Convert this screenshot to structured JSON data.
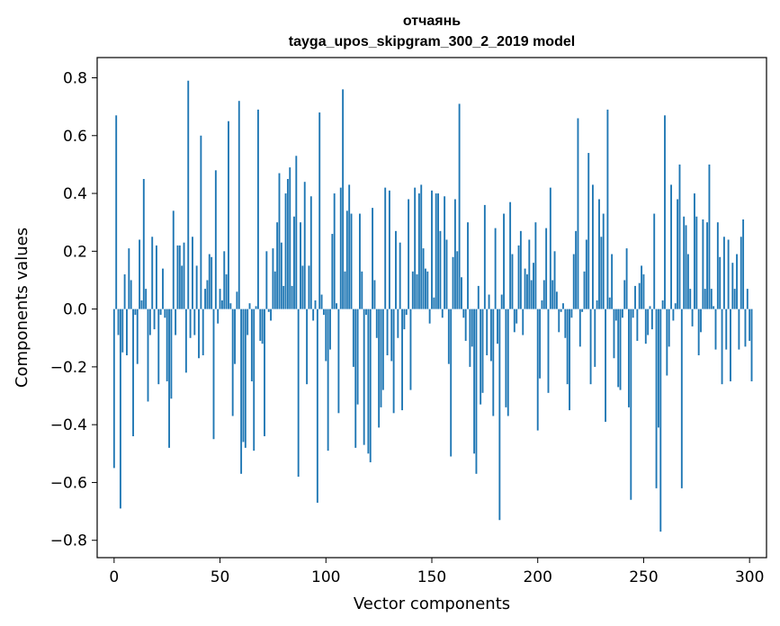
{
  "chart_data": {
    "type": "bar",
    "title_line1": "отчаянь",
    "title_line2": "tayga_upos_skipgram_300_2_2019 model",
    "xlabel": "Vector components",
    "ylabel": "Components values",
    "xlim": [
      -8,
      308
    ],
    "ylim": [
      -0.86,
      0.87
    ],
    "xticks": [
      0,
      50,
      100,
      150,
      200,
      250,
      300
    ],
    "yticks": [
      -0.8,
      -0.6,
      -0.4,
      -0.2,
      0.0,
      0.2,
      0.4,
      0.6,
      0.8
    ],
    "xtick_labels": [
      "0",
      "50",
      "100",
      "150",
      "200",
      "250",
      "300"
    ],
    "ytick_labels": [
      "−0.8",
      "−0.6",
      "−0.4",
      "−0.2",
      "0.0",
      "0.2",
      "0.4",
      "0.6",
      "0.8"
    ],
    "bar_color": "#1f77b4",
    "values": [
      -0.55,
      0.67,
      -0.09,
      -0.69,
      -0.15,
      0.12,
      -0.16,
      0.21,
      0.1,
      -0.44,
      -0.02,
      -0.19,
      0.24,
      0.03,
      0.45,
      0.07,
      -0.32,
      -0.09,
      0.25,
      -0.07,
      0.22,
      -0.26,
      -0.02,
      0.14,
      -0.03,
      -0.25,
      -0.48,
      -0.31,
      0.34,
      -0.09,
      0.22,
      0.22,
      0.15,
      0.23,
      -0.22,
      0.79,
      -0.1,
      0.25,
      -0.09,
      0.15,
      -0.17,
      0.6,
      -0.16,
      0.07,
      0.1,
      0.19,
      0.18,
      -0.45,
      0.48,
      -0.05,
      0.07,
      0.03,
      0.2,
      0.12,
      0.65,
      0.02,
      -0.37,
      -0.19,
      0.06,
      0.72,
      -0.57,
      -0.46,
      -0.48,
      -0.09,
      0.02,
      -0.25,
      -0.49,
      0.01,
      0.69,
      -0.11,
      -0.12,
      -0.44,
      0.2,
      -0.01,
      -0.04,
      0.21,
      0.13,
      0.3,
      0.47,
      0.23,
      0.08,
      0.4,
      0.45,
      0.49,
      0.08,
      0.32,
      0.53,
      -0.58,
      0.3,
      0.15,
      0.44,
      -0.26,
      0.15,
      0.39,
      -0.04,
      0.03,
      -0.67,
      0.68,
      0.05,
      -0.02,
      -0.18,
      -0.49,
      -0.14,
      0.26,
      0.4,
      0.02,
      -0.36,
      0.42,
      0.76,
      0.13,
      0.34,
      0.43,
      0.33,
      -0.2,
      -0.48,
      -0.33,
      0.33,
      0.13,
      -0.47,
      -0.02,
      -0.5,
      -0.53,
      0.35,
      0.1,
      -0.1,
      -0.41,
      -0.34,
      -0.28,
      0.42,
      -0.16,
      0.41,
      -0.18,
      -0.36,
      0.27,
      -0.1,
      0.23,
      -0.35,
      -0.07,
      -0.02,
      0.38,
      -0.28,
      0.13,
      0.42,
      0.12,
      0.4,
      0.43,
      0.21,
      0.14,
      0.13,
      -0.05,
      0.41,
      0.04,
      0.4,
      0.4,
      0.27,
      -0.03,
      0.39,
      0.24,
      -0.19,
      -0.51,
      0.18,
      0.38,
      0.2,
      0.71,
      0.11,
      -0.03,
      -0.11,
      0.3,
      -0.2,
      -0.13,
      -0.5,
      -0.57,
      0.08,
      -0.33,
      -0.29,
      0.36,
      -0.16,
      0.05,
      -0.18,
      -0.37,
      0.28,
      -0.12,
      -0.73,
      0.05,
      0.33,
      -0.34,
      -0.37,
      0.37,
      0.19,
      -0.08,
      -0.05,
      0.22,
      0.27,
      -0.09,
      0.14,
      0.12,
      0.24,
      0.1,
      0.16,
      0.3,
      -0.42,
      -0.24,
      0.03,
      0.1,
      0.28,
      -0.29,
      0.42,
      0.1,
      0.2,
      0.06,
      -0.08,
      -0.01,
      0.02,
      -0.1,
      -0.26,
      -0.35,
      -0.03,
      0.19,
      0.27,
      0.66,
      -0.13,
      -0.01,
      0.13,
      0.24,
      0.54,
      -0.26,
      0.43,
      -0.2,
      0.03,
      0.38,
      0.25,
      0.33,
      -0.39,
      0.69,
      0.04,
      0.19,
      -0.17,
      -0.04,
      -0.27,
      -0.28,
      -0.03,
      0.1,
      0.21,
      -0.34,
      -0.66,
      -0.03,
      0.08,
      -0.11,
      0.09,
      0.15,
      0.12,
      -0.12,
      -0.09,
      0.01,
      -0.07,
      0.33,
      -0.62,
      -0.41,
      -0.77,
      0.03,
      0.67,
      -0.23,
      -0.13,
      0.43,
      -0.04,
      0.02,
      0.38,
      0.5,
      -0.62,
      0.32,
      0.29,
      0.19,
      0.07,
      -0.06,
      0.4,
      0.32,
      -0.16,
      -0.08,
      0.31,
      0.07,
      0.3,
      0.5,
      0.07,
      0.01,
      -0.14,
      0.3,
      0.18,
      -0.26,
      0.25,
      -0.14,
      0.24,
      -0.25,
      0.16,
      0.07,
      0.19,
      -0.14,
      0.25,
      0.31,
      -0.13,
      0.07,
      -0.11,
      -0.25
    ]
  }
}
